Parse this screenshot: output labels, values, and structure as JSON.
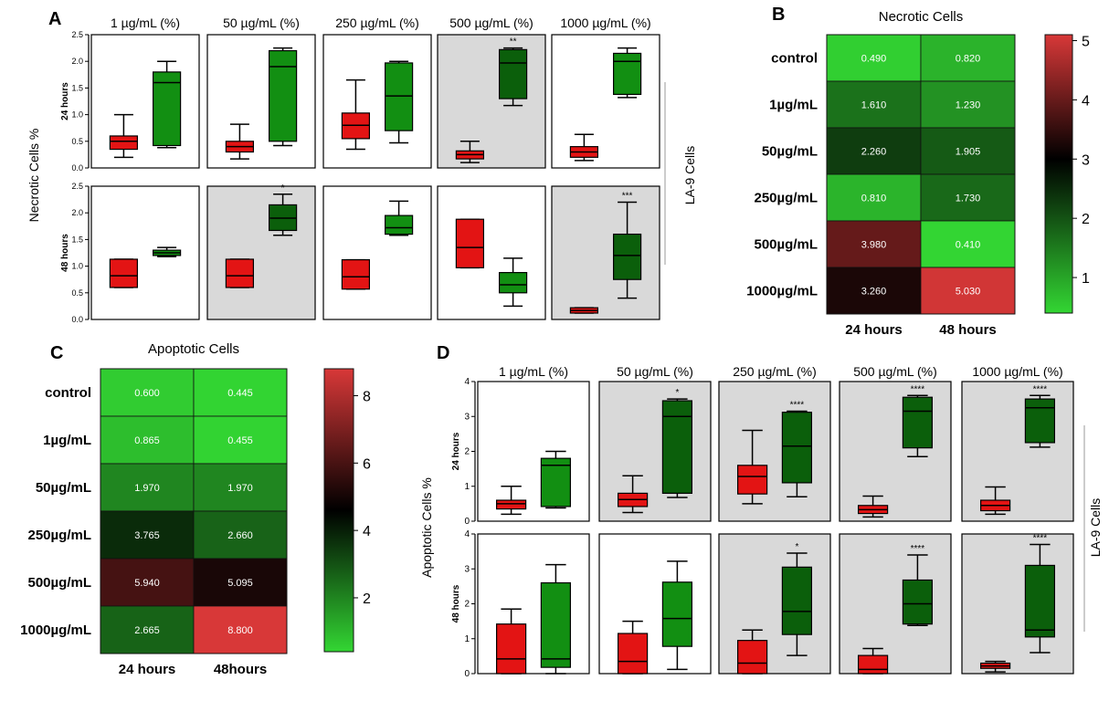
{
  "colors": {
    "red": "#e31414",
    "green_light": "#128f12",
    "green_dark": "#0b5f0b",
    "shade": "#d9d9d9",
    "heat_low": "#33d633",
    "heat_mid": "#000000",
    "heat_high": "#d83838"
  },
  "panel_labels": {
    "a": "A",
    "b": "B",
    "c": "C",
    "d": "D"
  },
  "boxplots": {
    "A": {
      "ylabel": "Necrotic Cells %",
      "side_label": "LA-9 Cells",
      "columns": [
        "1 µg/mL (%)",
        "50 µg/mL (%)",
        "250 µg/mL (%)",
        "500 µg/mL (%)",
        "1000 µg/mL (%)"
      ],
      "rows": [
        {
          "label": "24 hours",
          "ymax": 2.5,
          "ticks": [
            "0.0",
            "0.5",
            "1.0",
            "1.5",
            "2.0",
            "2.5"
          ],
          "cells": [
            {
              "shaded": false,
              "star": "",
              "boxes": [
                [
                  0.2,
                  0.35,
                  0.5,
                  0.6,
                  1.0
                ],
                [
                  0.38,
                  0.42,
                  1.6,
                  1.8,
                  2.0
                ]
              ]
            },
            {
              "shaded": false,
              "star": "",
              "boxes": [
                [
                  0.17,
                  0.3,
                  0.4,
                  0.5,
                  0.82
                ],
                [
                  0.42,
                  0.5,
                  1.9,
                  2.2,
                  2.25
                ]
              ]
            },
            {
              "shaded": false,
              "star": "",
              "boxes": [
                [
                  0.35,
                  0.55,
                  0.8,
                  1.03,
                  1.65
                ],
                [
                  0.47,
                  0.7,
                  1.35,
                  1.97,
                  2.0
                ]
              ]
            },
            {
              "shaded": true,
              "star": "**",
              "boxes": [
                [
                  0.1,
                  0.17,
                  0.25,
                  0.32,
                  0.5
                ],
                [
                  1.17,
                  1.3,
                  1.97,
                  2.22,
                  2.25
                ]
              ]
            },
            {
              "shaded": false,
              "star": "",
              "boxes": [
                [
                  0.14,
                  0.2,
                  0.3,
                  0.4,
                  0.63
                ],
                [
                  1.32,
                  1.38,
                  2.0,
                  2.15,
                  2.25
                ]
              ]
            }
          ]
        },
        {
          "label": "48 hours",
          "ymax": 2.5,
          "ticks": [
            "0.0",
            "0.5",
            "1.0",
            "1.5",
            "2.0",
            "2.5"
          ],
          "cells": [
            {
              "shaded": false,
              "star": "",
              "boxes": [
                [
                  0.6,
                  0.6,
                  0.82,
                  1.13,
                  1.13
                ],
                [
                  1.18,
                  1.2,
                  1.25,
                  1.3,
                  1.35
                ]
              ]
            },
            {
              "shaded": true,
              "star": "*",
              "boxes": [
                [
                  0.6,
                  0.6,
                  0.82,
                  1.13,
                  1.13
                ],
                [
                  1.58,
                  1.67,
                  1.9,
                  2.15,
                  2.35
                ]
              ]
            },
            {
              "shaded": false,
              "star": "",
              "boxes": [
                [
                  0.57,
                  0.57,
                  0.8,
                  1.12,
                  1.12
                ],
                [
                  1.58,
                  1.6,
                  1.72,
                  1.95,
                  2.22
                ]
              ]
            },
            {
              "shaded": false,
              "star": "",
              "boxes": [
                [
                  0.97,
                  0.97,
                  1.35,
                  1.88,
                  1.88
                ],
                [
                  0.25,
                  0.5,
                  0.65,
                  0.88,
                  1.15
                ]
              ]
            },
            {
              "shaded": true,
              "star": "***",
              "boxes": [
                [
                  0.12,
                  0.12,
                  0.17,
                  0.22,
                  0.22
                ],
                [
                  0.4,
                  0.75,
                  1.2,
                  1.6,
                  2.2
                ]
              ]
            }
          ]
        }
      ]
    },
    "D": {
      "ylabel": "Apoptotic Cells %",
      "side_label": "LA-9 Cells",
      "columns": [
        "1 µg/mL (%)",
        "50 µg/mL (%)",
        "250 µg/mL (%)",
        "500 µg/mL (%)",
        "1000 µg/mL (%)"
      ],
      "rows": [
        {
          "label": "24 hours",
          "ymax": 4,
          "ticks": [
            "0",
            "1",
            "2",
            "3",
            "4"
          ],
          "cells": [
            {
              "shaded": false,
              "star": "",
              "boxes": [
                [
                  0.2,
                  0.35,
                  0.5,
                  0.6,
                  1.0
                ],
                [
                  0.38,
                  0.42,
                  1.6,
                  1.8,
                  2.0
                ]
              ]
            },
            {
              "shaded": true,
              "star": "*",
              "boxes": [
                [
                  0.25,
                  0.42,
                  0.62,
                  0.8,
                  1.3
                ],
                [
                  0.68,
                  0.8,
                  3.0,
                  3.45,
                  3.5
                ]
              ]
            },
            {
              "shaded": true,
              "star": "****",
              "boxes": [
                [
                  0.5,
                  0.78,
                  1.28,
                  1.6,
                  2.6
                ],
                [
                  0.7,
                  1.1,
                  2.15,
                  3.12,
                  3.15
                ]
              ]
            },
            {
              "shaded": true,
              "star": "****",
              "boxes": [
                [
                  0.12,
                  0.22,
                  0.33,
                  0.45,
                  0.72
                ],
                [
                  1.85,
                  2.1,
                  3.15,
                  3.55,
                  3.6
                ]
              ]
            },
            {
              "shaded": true,
              "star": "****",
              "boxes": [
                [
                  0.2,
                  0.3,
                  0.45,
                  0.6,
                  0.98
                ],
                [
                  2.12,
                  2.25,
                  3.25,
                  3.5,
                  3.6
                ]
              ]
            }
          ]
        },
        {
          "label": "48 hours",
          "ymax": 4,
          "ticks": [
            "0",
            "1",
            "2",
            "3",
            "4"
          ],
          "cells": [
            {
              "shaded": false,
              "star": "",
              "boxes": [
                [
                  0.0,
                  0.0,
                  0.42,
                  1.42,
                  1.85
                ],
                [
                  0.0,
                  0.18,
                  0.42,
                  2.6,
                  3.12
                ]
              ]
            },
            {
              "shaded": false,
              "star": "",
              "boxes": [
                [
                  0.0,
                  0.0,
                  0.35,
                  1.15,
                  1.5
                ],
                [
                  0.12,
                  0.78,
                  1.58,
                  2.62,
                  3.22
                ]
              ]
            },
            {
              "shaded": true,
              "star": "*",
              "boxes": [
                [
                  0.0,
                  0.0,
                  0.3,
                  0.95,
                  1.25
                ],
                [
                  0.52,
                  1.12,
                  1.78,
                  3.05,
                  3.45
                ]
              ]
            },
            {
              "shaded": true,
              "star": "****",
              "boxes": [
                [
                  0.0,
                  0.0,
                  0.12,
                  0.52,
                  0.72
                ],
                [
                  1.38,
                  1.42,
                  2.0,
                  2.68,
                  3.4
                ]
              ]
            },
            {
              "shaded": true,
              "star": "****",
              "boxes": [
                [
                  0.05,
                  0.15,
                  0.22,
                  0.3,
                  0.35
                ],
                [
                  0.6,
                  1.05,
                  1.25,
                  3.1,
                  3.7
                ]
              ]
            }
          ]
        }
      ]
    }
  },
  "heatmaps": {
    "B": {
      "title": "Necrotic Cells",
      "rows": [
        "control",
        "1µg/mL",
        "50µg/mL",
        "250µg/mL",
        "500µg/mL",
        "1000µg/mL"
      ],
      "cols": [
        "24 hours",
        "48 hours"
      ],
      "values": [
        [
          0.49,
          0.82
        ],
        [
          1.61,
          1.23
        ],
        [
          2.26,
          1.905
        ],
        [
          0.81,
          1.73
        ],
        [
          3.98,
          0.41
        ],
        [
          3.26,
          5.03
        ]
      ],
      "labels": [
        [
          "0.490",
          "0.820"
        ],
        [
          "1.610",
          "1.230"
        ],
        [
          "2.260",
          "1.905"
        ],
        [
          "0.810",
          "1.730"
        ],
        [
          "3.980",
          "0.410"
        ],
        [
          "3.260",
          "5.030"
        ]
      ],
      "scale": {
        "min": 0.4,
        "mid": 3,
        "max": 5.1,
        "ticks": [
          1,
          2,
          3,
          4,
          5
        ]
      }
    },
    "C": {
      "title": "Apoptotic Cells",
      "rows": [
        "control",
        "1µg/mL",
        "50µg/mL",
        "250µg/mL",
        "500µg/mL",
        "1000µg/mL"
      ],
      "cols": [
        "24 hours",
        "48hours"
      ],
      "values": [
        [
          0.6,
          0.445
        ],
        [
          0.865,
          0.455
        ],
        [
          1.97,
          1.97
        ],
        [
          3.765,
          2.66
        ],
        [
          5.94,
          5.095
        ],
        [
          2.665,
          8.8
        ]
      ],
      "labels": [
        [
          "0.600",
          "0.445"
        ],
        [
          "0.865",
          "0.455"
        ],
        [
          "1.970",
          "1.970"
        ],
        [
          "3.765",
          "2.660"
        ],
        [
          "5.940",
          "5.095"
        ],
        [
          "2.665",
          "8.800"
        ]
      ],
      "scale": {
        "min": 0.4,
        "mid": 4.6,
        "max": 8.8,
        "ticks": [
          2,
          4,
          6,
          8
        ]
      }
    }
  },
  "chart_data": [
    {
      "type": "box",
      "panel": "A",
      "ylabel": "Necrotic Cells %",
      "note": "see boxplots.A"
    },
    {
      "type": "heatmap",
      "panel": "B",
      "title": "Necrotic Cells",
      "note": "see heatmaps.B"
    },
    {
      "type": "heatmap",
      "panel": "C",
      "title": "Apoptotic Cells",
      "note": "see heatmaps.C"
    },
    {
      "type": "box",
      "panel": "D",
      "ylabel": "Apoptotic Cells %",
      "note": "see boxplots.D"
    }
  ]
}
